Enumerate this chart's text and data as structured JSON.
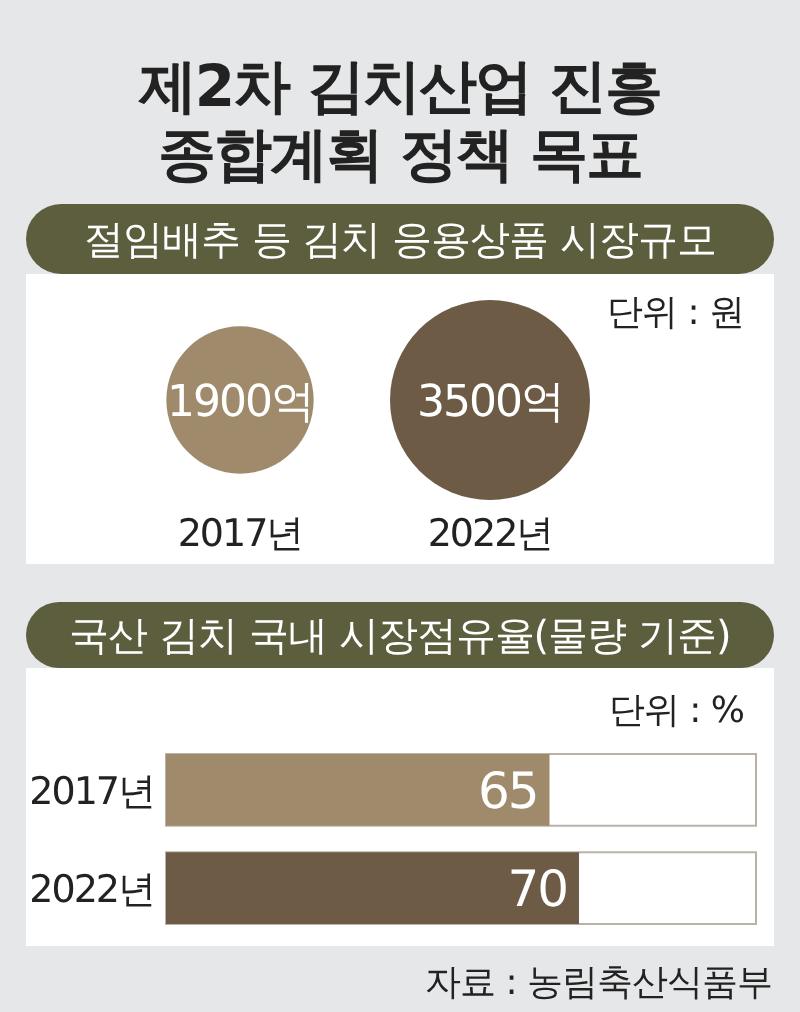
{
  "chart_data": [
    {
      "type": "other",
      "title": "제2차 김치산업 진흥 종합계획 정책 목표",
      "subtitle": "절임배추 등 김치 응용상품 시장규모",
      "categories": [
        "2017년",
        "2022년"
      ],
      "values": [
        1900,
        3500
      ],
      "value_labels": [
        "1900억",
        "3500억"
      ],
      "annotations": [
        "단위 : 원"
      ]
    },
    {
      "type": "bar",
      "orientation": "horizontal",
      "title": "국산 김치 국내 시장점유율(물량 기준)",
      "categories": [
        "2017년",
        "2022년"
      ],
      "values": [
        65,
        70
      ],
      "colors": [
        "#a08a6c",
        "#6d5b45"
      ],
      "xlim": [
        0,
        100
      ],
      "data_labels": true,
      "tick_labels": "y",
      "annotations": [
        "단위 : %",
        "자료 : 농림축산식품부"
      ]
    }
  ]
}
